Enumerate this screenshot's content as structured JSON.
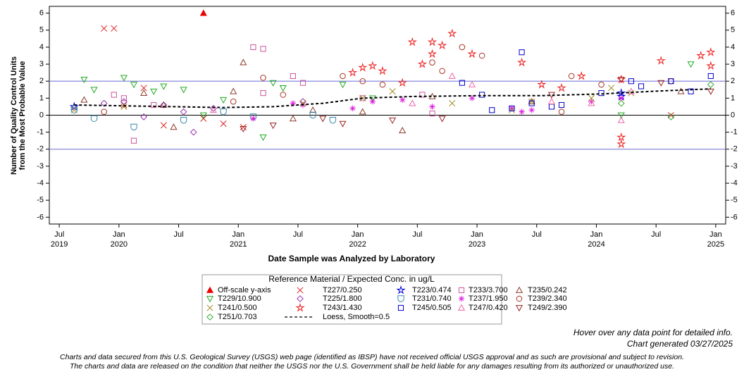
{
  "chart_data": {
    "type": "scatter",
    "ylabel": [
      "Number of Quality Control Units",
      "from the Most Probable Value"
    ],
    "xlabel": "Date Sample was Analyzed by Laboratory",
    "legend_title": "Reference Material / Expected Conc. in ug/L",
    "xlim": [
      "2019-06",
      "2025-02"
    ],
    "xticks": [
      {
        "value": "2019-07",
        "label": "Jul",
        "year": "2019"
      },
      {
        "value": "2020-01",
        "label": "Jan",
        "year": "2020"
      },
      {
        "value": "2020-07",
        "label": "Jul"
      },
      {
        "value": "2021-01",
        "label": "Jan",
        "year": "2021"
      },
      {
        "value": "2021-07",
        "label": "Jul"
      },
      {
        "value": "2022-01",
        "label": "Jan",
        "year": "2022"
      },
      {
        "value": "2022-07",
        "label": "Jul"
      },
      {
        "value": "2023-01",
        "label": "Jan",
        "year": "2023"
      },
      {
        "value": "2023-07",
        "label": "Jul"
      },
      {
        "value": "2024-01",
        "label": "Jan",
        "year": "2024"
      },
      {
        "value": "2024-07",
        "label": "Jul"
      },
      {
        "value": "2025-01",
        "label": "Jan",
        "year": "2025"
      }
    ],
    "ylim": [
      -6.4,
      6.4
    ],
    "yticks": [
      -6,
      -5,
      -4,
      -3,
      -2,
      -1,
      0,
      1,
      2,
      3,
      4,
      5,
      6
    ],
    "y2lim": [
      -6.4,
      6.4
    ],
    "y2ticks": [
      -6,
      -5,
      -4,
      -3,
      -2,
      -1,
      0,
      1,
      2,
      3,
      4,
      5,
      6
    ],
    "reference_lines": [
      2,
      -2
    ],
    "reference_color": "#8888dd",
    "zero_line": 0,
    "series": [
      {
        "name": "Off-scale y-axis",
        "marker": "triangle-filled",
        "color": "#ee0000",
        "x": [
          "2020-09"
        ],
        "values": [
          6
        ]
      },
      {
        "name": "T227/0.250",
        "marker": "x",
        "color": "#dd2222",
        "x": [
          "2019-11",
          "2019-12",
          "2020-01",
          "2020-03",
          "2020-05",
          "2020-09",
          "2020-11",
          "2021-01",
          "2024-08"
        ],
        "values": [
          5.1,
          5.1,
          0.6,
          1.6,
          -0.6,
          -0.2,
          -0.5,
          -0.7,
          0.0
        ]
      },
      {
        "name": "T223/0.474",
        "marker": "star",
        "color": "#0000dd",
        "x": [
          "2019-08",
          "2024-03",
          "2024-03"
        ],
        "values": [
          0.5,
          1.3,
          1.1
        ]
      },
      {
        "name": "T233/3.700",
        "marker": "square",
        "color": "#cc5599",
        "x": [
          "2019-12",
          "2020-01",
          "2020-02",
          "2020-04",
          "2021-02",
          "2021-03",
          "2021-03",
          "2021-06",
          "2021-07",
          "2022-01",
          "2022-07",
          "2022-08"
        ],
        "values": [
          1.2,
          1.0,
          -1.5,
          0.6,
          4.0,
          3.9,
          1.3,
          2.3,
          1.9,
          1.0,
          1.2,
          0.1
        ]
      },
      {
        "name": "T235/0.242",
        "marker": "triangle",
        "color": "#8b3a2a",
        "x": [
          "2019-09",
          "2020-03",
          "2020-05",
          "2020-06",
          "2020-12",
          "2021-01",
          "2021-06",
          "2021-08",
          "2022-01",
          "2022-05",
          "2022-08",
          "2023-06",
          "2024-09"
        ],
        "values": [
          0.9,
          1.3,
          0.6,
          -0.7,
          1.4,
          3.1,
          -0.2,
          0.3,
          0.2,
          -0.9,
          1.1,
          0.8,
          1.4
        ]
      },
      {
        "name": "T229/10.900",
        "marker": "triangle-down",
        "color": "#22aa22",
        "x": [
          "2019-09",
          "2019-10",
          "2020-01",
          "2020-02",
          "2020-04",
          "2020-05",
          "2020-07",
          "2020-09",
          "2020-11",
          "2021-03",
          "2021-04",
          "2021-05",
          "2021-11",
          "2022-02",
          "2024-03",
          "2024-10"
        ],
        "values": [
          2.1,
          1.5,
          2.2,
          1.8,
          1.4,
          1.7,
          1.5,
          0.0,
          0.9,
          -1.3,
          1.9,
          1.6,
          1.8,
          1.0,
          0.0,
          3.0
        ]
      },
      {
        "name": "T225/1.800",
        "marker": "diamond",
        "color": "#9933aa",
        "x": [
          "2019-11",
          "2020-01",
          "2020-03",
          "2020-05",
          "2020-07",
          "2020-08",
          "2020-10",
          "2021-07"
        ],
        "values": [
          0.7,
          0.8,
          -0.1,
          0.6,
          0.2,
          -1.0,
          0.4,
          0.8
        ]
      },
      {
        "name": "T231/0.740",
        "marker": "cup",
        "color": "#3388aa",
        "x": [
          "2019-08",
          "2019-10",
          "2020-02",
          "2020-07",
          "2020-11",
          "2021-02",
          "2021-08",
          "2021-10"
        ],
        "values": [
          0.3,
          -0.2,
          -0.7,
          -0.3,
          0.2,
          -0.1,
          0.0,
          -0.3
        ]
      },
      {
        "name": "T237/1.950",
        "marker": "asterisk",
        "color": "#dd22dd",
        "x": [
          "2021-02",
          "2021-06",
          "2021-07",
          "2021-12",
          "2022-02",
          "2022-05",
          "2022-08",
          "2022-12",
          "2023-04",
          "2023-05",
          "2023-06",
          "2023-12",
          "2024-03"
        ],
        "values": [
          -0.2,
          0.7,
          0.6,
          0.4,
          0.8,
          0.9,
          0.5,
          1.0,
          0.4,
          0.2,
          0.3,
          0.8,
          1.0
        ]
      },
      {
        "name": "T239/2.340",
        "marker": "circle",
        "color": "#aa3322",
        "x": [
          "2019-11",
          "2020-12",
          "2021-03",
          "2021-05",
          "2021-11",
          "2022-01",
          "2022-03",
          "2022-08",
          "2022-09",
          "2022-11",
          "2023-01",
          "2023-09",
          "2023-10",
          "2024-01",
          "2024-08"
        ],
        "values": [
          0.2,
          0.8,
          2.2,
          1.2,
          2.3,
          2.0,
          1.8,
          3.1,
          2.6,
          4.0,
          3.5,
          0.2,
          2.3,
          1.8,
          2.0
        ]
      },
      {
        "name": "T241/0.500",
        "marker": "x",
        "color": "#a08a20",
        "x": [
          "2019-08",
          "2020-01",
          "2021-07",
          "2022-01",
          "2022-04",
          "2022-10",
          "2023-04",
          "2023-06",
          "2023-12",
          "2024-02",
          "2024-04"
        ],
        "values": [
          0.3,
          0.5,
          0.7,
          1.0,
          1.4,
          0.7,
          0.3,
          0.8,
          1.0,
          1.6,
          1.3
        ]
      },
      {
        "name": "T243/1.430",
        "marker": "star",
        "color": "#ee2222",
        "x": [
          "2021-12",
          "2022-01",
          "2022-02",
          "2022-03",
          "2022-05",
          "2022-06",
          "2022-07",
          "2022-08",
          "2022-08",
          "2022-09",
          "2022-10",
          "2022-12",
          "2023-05",
          "2023-07",
          "2023-09",
          "2023-11",
          "2024-03",
          "2024-03",
          "2024-03",
          "2024-07",
          "2024-11",
          "2024-12",
          "2024-12"
        ],
        "values": [
          2.5,
          2.8,
          2.9,
          2.6,
          1.9,
          4.3,
          3.0,
          4.3,
          3.6,
          4.1,
          4.8,
          3.6,
          3.1,
          1.8,
          1.6,
          2.3,
          2.1,
          -1.3,
          -1.7,
          3.2,
          3.5,
          3.7,
          2.9
        ]
      },
      {
        "name": "T245/0.505",
        "marker": "square",
        "color": "#0000cc",
        "x": [
          "2022-11",
          "2023-01",
          "2023-02",
          "2023-04",
          "2023-05",
          "2023-06",
          "2023-08",
          "2023-09",
          "2024-01",
          "2024-04",
          "2024-05",
          "2024-08",
          "2024-10",
          "2024-12"
        ],
        "values": [
          1.9,
          1.2,
          0.3,
          0.4,
          3.7,
          0.7,
          0.5,
          0.6,
          1.3,
          2.0,
          1.7,
          2.0,
          1.4,
          2.3
        ]
      },
      {
        "name": "T247/0.420",
        "marker": "triangle",
        "color": "#ee66aa",
        "x": [
          "2020-10",
          "2022-06",
          "2022-10",
          "2022-12",
          "2023-08",
          "2023-12",
          "2024-03",
          "2024-04"
        ],
        "values": [
          0.3,
          0.7,
          2.3,
          1.8,
          0.8,
          0.7,
          -0.3,
          1.4
        ]
      },
      {
        "name": "T249/2.390",
        "marker": "triangle-down",
        "color": "#992222",
        "x": [
          "2021-01",
          "2021-04",
          "2021-09",
          "2021-11",
          "2022-04",
          "2022-09",
          "2023-08",
          "2024-03",
          "2024-07",
          "2024-12"
        ],
        "values": [
          -0.8,
          -0.6,
          -0.2,
          -0.5,
          -0.3,
          -0.2,
          1.2,
          2.1,
          1.9,
          1.4
        ]
      },
      {
        "name": "T251/0.703",
        "marker": "diamond",
        "color": "#33aa33",
        "x": [
          "2024-03",
          "2024-08",
          "2024-12"
        ],
        "values": [
          0.7,
          -0.1,
          1.8
        ]
      },
      {
        "name": "Loess, Smooth=0.5",
        "line": "dashed",
        "color": "#000000",
        "x": [
          "2019-08",
          "2020-06",
          "2020-11",
          "2021-04",
          "2021-09",
          "2022-01",
          "2022-06",
          "2023-01",
          "2023-07",
          "2024-01",
          "2024-06",
          "2024-12"
        ],
        "values": [
          0.6,
          0.5,
          0.45,
          0.5,
          0.7,
          1.0,
          1.1,
          1.15,
          1.15,
          1.25,
          1.4,
          1.55
        ]
      }
    ],
    "notes": [
      "Hover over any data point for detailed info.",
      "Chart generated 03/27/2025"
    ],
    "disclaimer": [
      "Charts and data secured from this U.S. Geological Survey (USGS) web page (identified as IBSP) have not received official USGS approval and as such are provisional and subject to revision.",
      "The charts and data are released on the condition that neither the USGS nor the U.S. Government shall be held liable for any damages resulting from its authorized or unauthorized use."
    ]
  }
}
